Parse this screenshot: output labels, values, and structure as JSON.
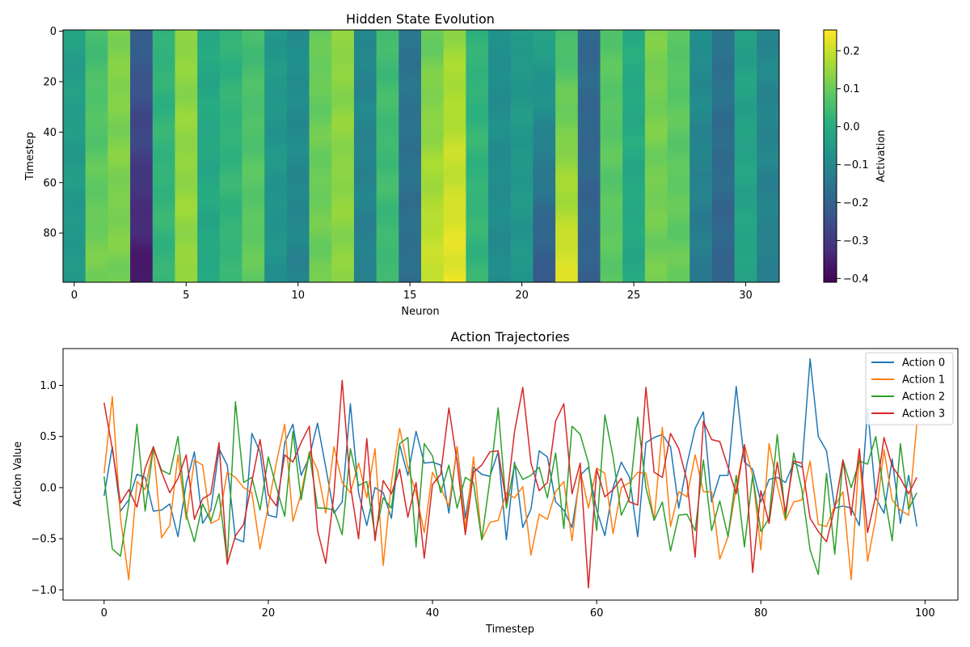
{
  "chart_data": [
    {
      "type": "heatmap",
      "title": "Hidden State Evolution",
      "xlabel": "Neuron",
      "ylabel": "Timestep",
      "xlim": [
        -0.5,
        31.5
      ],
      "ylim": [
        99.5,
        -0.5
      ],
      "xticks": [
        0,
        5,
        10,
        15,
        20,
        25,
        30
      ],
      "yticks": [
        0,
        20,
        40,
        60,
        80
      ],
      "colorbar": {
        "label": "Activation",
        "min": -0.41,
        "max": 0.255,
        "ticks": [
          -0.4,
          -0.3,
          -0.2,
          -0.1,
          0.0,
          0.1,
          0.2
        ],
        "tick_labels": [
          "−0.4",
          "−0.3",
          "−0.2",
          "−0.1",
          "0.0",
          "0.1",
          "0.2"
        ]
      },
      "colormap": "viridis",
      "grid": false,
      "neuron_start": [
        -0.03,
        0.05,
        0.13,
        -0.2,
        0.02,
        0.14,
        -0.01,
        0.02,
        0.05,
        -0.05,
        -0.08,
        0.1,
        0.14,
        -0.1,
        0.05,
        -0.15,
        0.1,
        0.15,
        0.02,
        -0.08,
        -0.05,
        -0.02,
        0.05,
        -0.18,
        0.08,
        0.0,
        0.12,
        0.08,
        -0.08,
        -0.15,
        -0.03,
        -0.1
      ],
      "neuron_end": [
        -0.06,
        0.12,
        0.12,
        -0.37,
        0.03,
        0.15,
        -0.01,
        0.03,
        0.1,
        -0.07,
        -0.11,
        0.11,
        0.14,
        -0.12,
        0.04,
        -0.17,
        0.21,
        0.24,
        0.03,
        -0.09,
        -0.06,
        -0.23,
        0.23,
        -0.2,
        0.09,
        -0.01,
        0.11,
        0.1,
        -0.14,
        -0.2,
        -0.02,
        -0.12
      ]
    },
    {
      "type": "line",
      "title": "Action Trajectories",
      "xlabel": "Timestep",
      "ylabel": "Action Value",
      "xlim": [
        -5,
        104
      ],
      "ylim": [
        -1.1,
        1.36
      ],
      "xticks": [
        0,
        20,
        40,
        60,
        80,
        100
      ],
      "yticks": [
        -1.0,
        -0.5,
        0.0,
        0.5,
        1.0
      ],
      "ytick_labels": [
        "−1.0",
        "−0.5",
        "0.0",
        "0.5",
        "1.0"
      ],
      "grid": false,
      "legend": "top-right",
      "x": [
        0,
        1,
        2,
        3,
        4,
        5,
        6,
        7,
        8,
        9,
        10,
        11,
        12,
        13,
        14,
        15,
        16,
        17,
        18,
        19,
        20,
        21,
        22,
        23,
        24,
        25,
        26,
        27,
        28,
        29,
        30,
        31,
        32,
        33,
        34,
        35,
        36,
        37,
        38,
        39,
        40,
        41,
        42,
        43,
        44,
        45,
        46,
        47,
        48,
        49,
        50,
        51,
        52,
        53,
        54,
        55,
        56,
        57,
        58,
        59,
        60,
        61,
        62,
        63,
        64,
        65,
        66,
        67,
        68,
        69,
        70,
        71,
        72,
        73,
        74,
        75,
        76,
        77,
        78,
        79,
        80,
        81,
        82,
        83,
        84,
        85,
        86,
        87,
        88,
        89,
        90,
        91,
        92,
        93,
        94,
        95,
        96,
        97,
        98,
        99
      ],
      "series": [
        {
          "name": "Action 0",
          "color": "#1f77b4",
          "values": [
            -0.08,
            0.4,
            -0.23,
            -0.12,
            0.13,
            0.1,
            -0.23,
            -0.22,
            -0.16,
            -0.48,
            0.04,
            0.35,
            -0.35,
            -0.22,
            0.38,
            0.22,
            -0.5,
            -0.53,
            0.53,
            0.35,
            -0.27,
            -0.29,
            0.44,
            0.62,
            0.12,
            0.3,
            0.63,
            0.2,
            -0.25,
            -0.14,
            0.82,
            -0.05,
            -0.37,
            0.0,
            -0.05,
            -0.3,
            0.42,
            0.12,
            0.55,
            0.24,
            0.25,
            0.22,
            -0.25,
            0.4,
            -0.3,
            0.2,
            0.13,
            0.11,
            0.35,
            -0.51,
            0.25,
            -0.39,
            -0.21,
            0.36,
            0.3,
            -0.14,
            -0.22,
            -0.39,
            0.12,
            0.2,
            -0.22,
            -0.47,
            0.0,
            0.25,
            0.1,
            -0.48,
            0.44,
            0.49,
            0.52,
            0.4,
            -0.2,
            0.23,
            0.58,
            0.74,
            -0.14,
            0.12,
            0.12,
            0.99,
            0.25,
            0.18,
            -0.14,
            0.08,
            0.1,
            0.05,
            0.24,
            0.2,
            1.26,
            0.5,
            0.36,
            -0.2,
            -0.18,
            -0.2,
            -0.37,
            0.78,
            -0.1,
            -0.25,
            0.28,
            -0.35,
            0.12,
            -0.38
          ]
        },
        {
          "name": "Action 1",
          "color": "#ff7f0e",
          "values": [
            0.14,
            0.89,
            -0.3,
            -0.9,
            0.06,
            -0.02,
            0.4,
            -0.49,
            -0.37,
            0.32,
            -0.31,
            0.27,
            0.22,
            -0.35,
            -0.31,
            0.15,
            0.1,
            0.0,
            -0.05,
            -0.6,
            -0.18,
            0.25,
            0.62,
            -0.33,
            -0.06,
            0.35,
            0.17,
            -0.25,
            0.4,
            0.05,
            -0.05,
            0.24,
            -0.1,
            0.38,
            -0.76,
            0.05,
            0.58,
            0.2,
            -0.05,
            -0.44,
            0.15,
            0.0,
            -0.18,
            0.4,
            -0.4,
            0.3,
            -0.51,
            -0.34,
            -0.32,
            -0.05,
            -0.1,
            0.01,
            -0.66,
            -0.26,
            -0.31,
            -0.04,
            0.06,
            -0.52,
            0.17,
            -0.2,
            0.19,
            0.14,
            -0.45,
            0.0,
            0.05,
            0.15,
            0.14,
            -0.32,
            0.59,
            -0.38,
            -0.04,
            -0.09,
            0.32,
            -0.04,
            -0.04,
            -0.7,
            -0.48,
            0.0,
            0.42,
            0.12,
            -0.61,
            0.43,
            0.02,
            -0.32,
            -0.14,
            -0.12,
            0.26,
            -0.36,
            -0.38,
            -0.18,
            -0.04,
            -0.9,
            0.34,
            -0.72,
            -0.3,
            0.37,
            -0.12,
            -0.22,
            -0.27,
            0.62
          ]
        },
        {
          "name": "Action 2",
          "color": "#2ca02c",
          "values": [
            0.11,
            -0.6,
            -0.67,
            -0.16,
            0.62,
            -0.23,
            0.39,
            0.17,
            0.13,
            0.5,
            -0.26,
            -0.53,
            -0.16,
            -0.33,
            -0.06,
            -0.72,
            0.84,
            0.05,
            0.1,
            -0.22,
            0.3,
            0.0,
            -0.28,
            0.55,
            -0.12,
            0.34,
            -0.2,
            -0.2,
            -0.22,
            -0.46,
            0.38,
            0.02,
            0.06,
            -0.47,
            -0.1,
            -0.2,
            0.43,
            0.49,
            -0.58,
            0.43,
            0.31,
            -0.05,
            0.22,
            -0.2,
            0.1,
            0.05,
            -0.51,
            0.08,
            0.78,
            -0.2,
            0.23,
            0.08,
            0.12,
            0.2,
            -0.1,
            0.34,
            -0.4,
            0.6,
            0.52,
            0.24,
            -0.42,
            0.71,
            0.3,
            -0.27,
            -0.1,
            0.69,
            0.0,
            -0.32,
            -0.14,
            -0.62,
            -0.27,
            -0.26,
            -0.42,
            0.27,
            -0.42,
            -0.13,
            -0.48,
            0.12,
            -0.58,
            0.12,
            -0.43,
            -0.3,
            0.52,
            -0.3,
            0.34,
            -0.02,
            -0.61,
            -0.85,
            0.14,
            -0.65,
            0.27,
            0.0,
            0.26,
            0.23,
            0.5,
            -0.05,
            -0.52,
            0.43,
            -0.21,
            -0.05
          ]
        },
        {
          "name": "Action 3",
          "color": "#d62728",
          "values": [
            0.83,
            0.38,
            -0.15,
            -0.02,
            -0.19,
            0.19,
            0.4,
            0.15,
            -0.05,
            0.09,
            0.32,
            -0.31,
            -0.11,
            -0.06,
            0.44,
            -0.75,
            -0.47,
            -0.36,
            0.06,
            0.47,
            -0.07,
            -0.18,
            0.32,
            0.25,
            0.44,
            0.6,
            -0.42,
            -0.74,
            -0.06,
            1.05,
            0.02,
            -0.5,
            0.48,
            -0.52,
            0.07,
            -0.06,
            0.18,
            -0.29,
            0.05,
            -0.69,
            0.03,
            0.13,
            0.78,
            0.25,
            -0.46,
            0.15,
            0.22,
            0.35,
            0.36,
            -0.15,
            0.55,
            0.98,
            0.24,
            -0.03,
            0.05,
            0.65,
            0.82,
            -0.06,
            0.24,
            -0.98,
            0.18,
            -0.09,
            -0.02,
            0.09,
            -0.14,
            -0.17,
            0.98,
            0.15,
            0.1,
            0.53,
            0.38,
            0.07,
            -0.68,
            0.65,
            0.47,
            0.45,
            0.2,
            -0.06,
            0.42,
            -0.83,
            -0.03,
            -0.35,
            0.25,
            -0.24,
            0.26,
            0.24,
            -0.3,
            -0.43,
            -0.53,
            -0.2,
            0.27,
            -0.27,
            0.38,
            -0.44,
            -0.08,
            0.49,
            0.21,
            0.09,
            -0.06,
            0.1
          ]
        }
      ]
    }
  ]
}
